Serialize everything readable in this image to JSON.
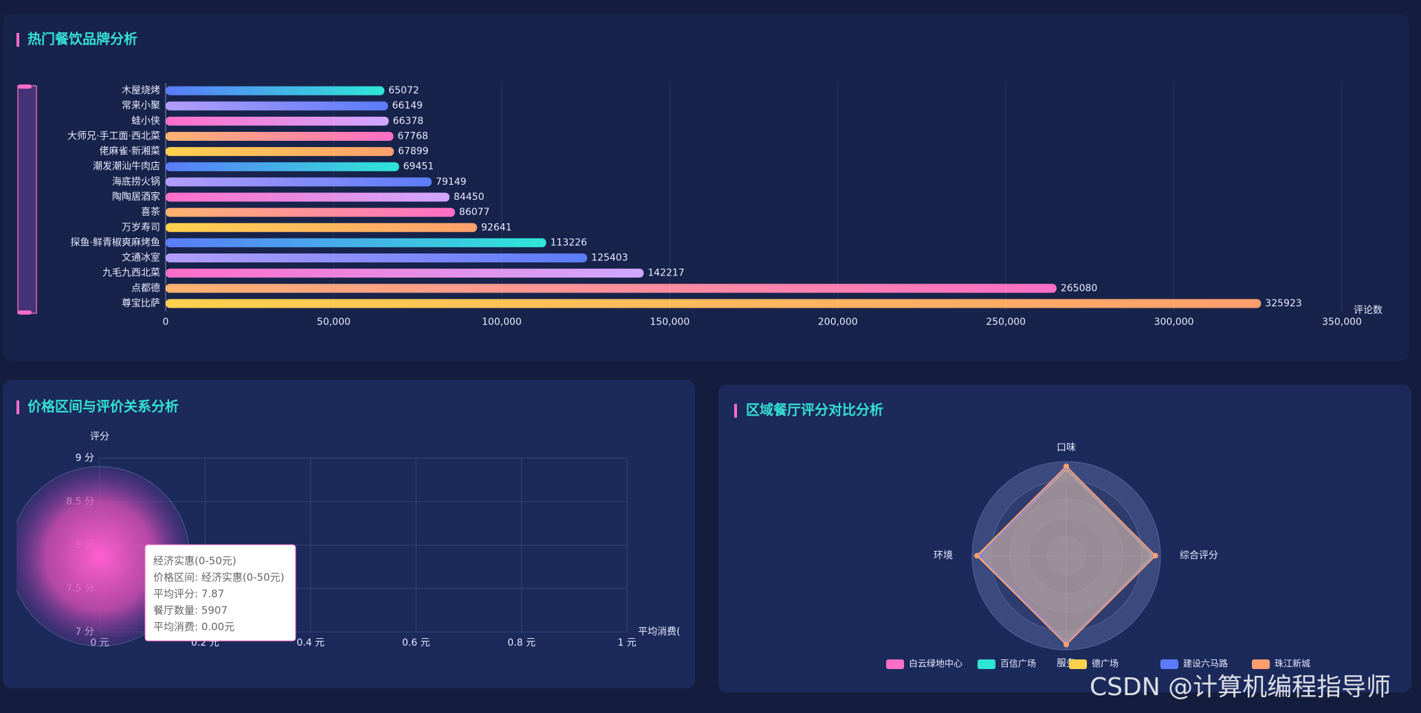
{
  "chart_data": [
    {
      "type": "bar",
      "orientation": "horizontal",
      "title": "热门餐饮品牌分析",
      "categories": [
        "木屋烧烤",
        "常来小聚",
        "蛙小侠",
        "大师兄·手工面·西北菜",
        "佬麻雀·新湘菜",
        "潮发潮汕牛肉店",
        "海底捞火锅",
        "陶陶居酒家",
        "喜茶",
        "万岁寿司",
        "探鱼·鲜青椒爽麻烤鱼",
        "文通冰室",
        "九毛九西北菜",
        "点都德",
        "尊宝比萨"
      ],
      "values": [
        65072,
        66149,
        66378,
        67768,
        67899,
        69451,
        79149,
        84450,
        86077,
        92641,
        113226,
        125403,
        142217,
        265080,
        325923
      ],
      "colors": [
        [
          "#5b7cfa",
          "#2ee6d6"
        ],
        [
          "#b39dfa",
          "#5b7cfa"
        ],
        [
          "#ff6ec7",
          "#d0a8ff"
        ],
        [
          "#ffb36e",
          "#ff6ec7"
        ],
        [
          "#ffd24d",
          "#ff9f6e"
        ]
      ],
      "xlabel": "评论数",
      "xlim": [
        0,
        350000
      ],
      "xticks": [
        0,
        {
          "value": 50000,
          "label": "50,000"
        },
        {
          "value": 100000,
          "label": "100,000"
        },
        {
          "value": 150000,
          "label": "150,000"
        },
        {
          "value": 200000,
          "label": "200,000"
        },
        {
          "value": 250000,
          "label": "250,000"
        },
        {
          "value": 300000,
          "label": "300,000"
        },
        {
          "value": 350000,
          "label": "350,000"
        }
      ],
      "grid": true
    },
    {
      "type": "scatter",
      "title": "价格区间与评价关系分析",
      "xlabel": "平均消费(",
      "ylabel": "评分",
      "x": [
        0
      ],
      "values": [
        7.87
      ],
      "sizes": [
        5907
      ],
      "color": "#ff5fd0",
      "xlim": [
        0,
        1
      ],
      "xticks": [
        {
          "value": 0,
          "label": "0 元"
        },
        {
          "value": 0.2,
          "label": "0.2 元"
        },
        {
          "value": 0.4,
          "label": "0.4 元"
        },
        {
          "value": 0.6,
          "label": "0.6 元"
        },
        {
          "value": 0.8,
          "label": "0.8 元"
        },
        {
          "value": 1,
          "label": "1 元"
        }
      ],
      "ylim": [
        7,
        9
      ],
      "yticks": [
        {
          "value": 7,
          "label": "7 分"
        },
        {
          "value": 7.5,
          "label": "7.5 分"
        },
        {
          "value": 8,
          "label": "8 分"
        },
        {
          "value": 8.5,
          "label": "8.5 分"
        },
        {
          "value": 9,
          "label": "9 分"
        }
      ],
      "grid": true,
      "tooltip": {
        "title": "经济实惠(0-50元)",
        "lines": [
          "价格区间: 经济实惠(0-50元)",
          "平均评分: 7.87",
          "餐厅数量: 5907",
          "平均消费: 0.00元"
        ]
      }
    },
    {
      "type": "radar",
      "title": "区域餐厅评分对比分析",
      "indicators": [
        "口味",
        "综合评分",
        "服务",
        "环境"
      ],
      "rlim": [
        0,
        5
      ],
      "series": [
        {
          "name": "白云绿地中心",
          "color": "#ff6ec7",
          "values": [
            4.6,
            4.65,
            4.6,
            4.6
          ]
        },
        {
          "name": "百信广场",
          "color": "#2ee6d6",
          "values": [
            4.65,
            4.6,
            4.65,
            4.62
          ]
        },
        {
          "name": "德广场",
          "color": "#ffd24d",
          "values": [
            4.62,
            4.62,
            4.62,
            4.65
          ]
        },
        {
          "name": "建设六马路",
          "color": "#5b7cfa",
          "values": [
            4.68,
            4.66,
            4.64,
            4.6
          ]
        },
        {
          "name": "珠江新城",
          "color": "#ff9f6e",
          "values": [
            4.75,
            4.73,
            4.72,
            4.74
          ]
        }
      ]
    }
  ],
  "watermark": "CSDN @计算机编程指导师"
}
